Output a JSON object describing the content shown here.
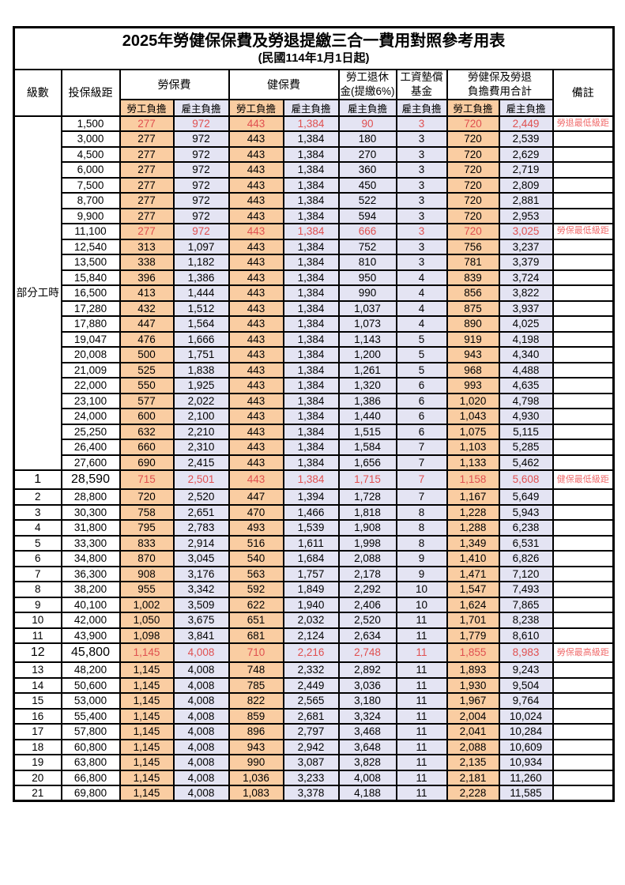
{
  "title": "2025年勞健保保費及勞退提繳三合一費用對照參考用表",
  "subtitle": "(民國114年1月1日起)",
  "colors": {
    "employee_bg": "#FACDA2",
    "employer_bg": "#E4E4F3",
    "red_value": "#E05050",
    "red_remark": "#F06A6A",
    "border": "#000000"
  },
  "header": {
    "level": "級數",
    "salary_bracket": "投保級距",
    "labor_insurance": "勞保費",
    "health_insurance": "健保費",
    "pension_line1": "勞工退休",
    "pension_line2": "金(提繳6%)",
    "wage_arrears_line1": "工資墊償",
    "wage_arrears_line2": "基金",
    "total_line1": "勞健保及勞退",
    "total_line2": "負擔費用合計",
    "remark": "備註",
    "employee_share": "勞工負擔",
    "employer_share": "雇主負擔"
  },
  "part_time_label": "部分工時",
  "rows": [
    {
      "level": "",
      "bracket": "1,500",
      "v": [
        "277",
        "972",
        "443",
        "1,384",
        "90",
        "3",
        "720",
        "2,449"
      ],
      "remark": "勞退最低級距",
      "red": true,
      "big": false
    },
    {
      "level": "",
      "bracket": "3,000",
      "v": [
        "277",
        "972",
        "443",
        "1,384",
        "180",
        "3",
        "720",
        "2,539"
      ],
      "remark": "",
      "red": false,
      "big": false
    },
    {
      "level": "",
      "bracket": "4,500",
      "v": [
        "277",
        "972",
        "443",
        "1,384",
        "270",
        "3",
        "720",
        "2,629"
      ],
      "remark": "",
      "red": false,
      "big": false
    },
    {
      "level": "",
      "bracket": "6,000",
      "v": [
        "277",
        "972",
        "443",
        "1,384",
        "360",
        "3",
        "720",
        "2,719"
      ],
      "remark": "",
      "red": false,
      "big": false
    },
    {
      "level": "",
      "bracket": "7,500",
      "v": [
        "277",
        "972",
        "443",
        "1,384",
        "450",
        "3",
        "720",
        "2,809"
      ],
      "remark": "",
      "red": false,
      "big": false
    },
    {
      "level": "",
      "bracket": "8,700",
      "v": [
        "277",
        "972",
        "443",
        "1,384",
        "522",
        "3",
        "720",
        "2,881"
      ],
      "remark": "",
      "red": false,
      "big": false
    },
    {
      "level": "",
      "bracket": "9,900",
      "v": [
        "277",
        "972",
        "443",
        "1,384",
        "594",
        "3",
        "720",
        "2,953"
      ],
      "remark": "",
      "red": false,
      "big": false
    },
    {
      "level": "",
      "bracket": "11,100",
      "v": [
        "277",
        "972",
        "443",
        "1,384",
        "666",
        "3",
        "720",
        "3,025"
      ],
      "remark": "勞保最低級距",
      "red": true,
      "big": false
    },
    {
      "level": "",
      "bracket": "12,540",
      "v": [
        "313",
        "1,097",
        "443",
        "1,384",
        "752",
        "3",
        "756",
        "3,237"
      ],
      "remark": "",
      "red": false,
      "big": false
    },
    {
      "level": "",
      "bracket": "13,500",
      "v": [
        "338",
        "1,182",
        "443",
        "1,384",
        "810",
        "3",
        "781",
        "3,379"
      ],
      "remark": "",
      "red": false,
      "big": false
    },
    {
      "level": "",
      "bracket": "15,840",
      "v": [
        "396",
        "1,386",
        "443",
        "1,384",
        "950",
        "4",
        "839",
        "3,724"
      ],
      "remark": "",
      "red": false,
      "big": false
    },
    {
      "level": "",
      "bracket": "16,500",
      "v": [
        "413",
        "1,444",
        "443",
        "1,384",
        "990",
        "4",
        "856",
        "3,822"
      ],
      "remark": "",
      "red": false,
      "big": false
    },
    {
      "level": "",
      "bracket": "17,280",
      "v": [
        "432",
        "1,512",
        "443",
        "1,384",
        "1,037",
        "4",
        "875",
        "3,937"
      ],
      "remark": "",
      "red": false,
      "big": false
    },
    {
      "level": "",
      "bracket": "17,880",
      "v": [
        "447",
        "1,564",
        "443",
        "1,384",
        "1,073",
        "4",
        "890",
        "4,025"
      ],
      "remark": "",
      "red": false,
      "big": false
    },
    {
      "level": "",
      "bracket": "19,047",
      "v": [
        "476",
        "1,666",
        "443",
        "1,384",
        "1,143",
        "5",
        "919",
        "4,198"
      ],
      "remark": "",
      "red": false,
      "big": false
    },
    {
      "level": "",
      "bracket": "20,008",
      "v": [
        "500",
        "1,751",
        "443",
        "1,384",
        "1,200",
        "5",
        "943",
        "4,340"
      ],
      "remark": "",
      "red": false,
      "big": false
    },
    {
      "level": "",
      "bracket": "21,009",
      "v": [
        "525",
        "1,838",
        "443",
        "1,384",
        "1,261",
        "5",
        "968",
        "4,488"
      ],
      "remark": "",
      "red": false,
      "big": false
    },
    {
      "level": "",
      "bracket": "22,000",
      "v": [
        "550",
        "1,925",
        "443",
        "1,384",
        "1,320",
        "6",
        "993",
        "4,635"
      ],
      "remark": "",
      "red": false,
      "big": false
    },
    {
      "level": "",
      "bracket": "23,100",
      "v": [
        "577",
        "2,022",
        "443",
        "1,384",
        "1,386",
        "6",
        "1,020",
        "4,798"
      ],
      "remark": "",
      "red": false,
      "big": false
    },
    {
      "level": "",
      "bracket": "24,000",
      "v": [
        "600",
        "2,100",
        "443",
        "1,384",
        "1,440",
        "6",
        "1,043",
        "4,930"
      ],
      "remark": "",
      "red": false,
      "big": false
    },
    {
      "level": "",
      "bracket": "25,250",
      "v": [
        "632",
        "2,210",
        "443",
        "1,384",
        "1,515",
        "6",
        "1,075",
        "5,115"
      ],
      "remark": "",
      "red": false,
      "big": false
    },
    {
      "level": "",
      "bracket": "26,400",
      "v": [
        "660",
        "2,310",
        "443",
        "1,384",
        "1,584",
        "7",
        "1,103",
        "5,285"
      ],
      "remark": "",
      "red": false,
      "big": false
    },
    {
      "level": "",
      "bracket": "27,600",
      "v": [
        "690",
        "2,415",
        "443",
        "1,384",
        "1,656",
        "7",
        "1,133",
        "5,462"
      ],
      "remark": "",
      "red": false,
      "big": false
    },
    {
      "level": "1",
      "bracket": "28,590",
      "v": [
        "715",
        "2,501",
        "443",
        "1,384",
        "1,715",
        "7",
        "1,158",
        "5,608"
      ],
      "remark": "健保最低級距",
      "red": true,
      "big": true
    },
    {
      "level": "2",
      "bracket": "28,800",
      "v": [
        "720",
        "2,520",
        "447",
        "1,394",
        "1,728",
        "7",
        "1,167",
        "5,649"
      ],
      "remark": "",
      "red": false,
      "big": false
    },
    {
      "level": "3",
      "bracket": "30,300",
      "v": [
        "758",
        "2,651",
        "470",
        "1,466",
        "1,818",
        "8",
        "1,228",
        "5,943"
      ],
      "remark": "",
      "red": false,
      "big": false
    },
    {
      "level": "4",
      "bracket": "31,800",
      "v": [
        "795",
        "2,783",
        "493",
        "1,539",
        "1,908",
        "8",
        "1,288",
        "6,238"
      ],
      "remark": "",
      "red": false,
      "big": false
    },
    {
      "level": "5",
      "bracket": "33,300",
      "v": [
        "833",
        "2,914",
        "516",
        "1,611",
        "1,998",
        "8",
        "1,349",
        "6,531"
      ],
      "remark": "",
      "red": false,
      "big": false
    },
    {
      "level": "6",
      "bracket": "34,800",
      "v": [
        "870",
        "3,045",
        "540",
        "1,684",
        "2,088",
        "9",
        "1,410",
        "6,826"
      ],
      "remark": "",
      "red": false,
      "big": false
    },
    {
      "level": "7",
      "bracket": "36,300",
      "v": [
        "908",
        "3,176",
        "563",
        "1,757",
        "2,178",
        "9",
        "1,471",
        "7,120"
      ],
      "remark": "",
      "red": false,
      "big": false
    },
    {
      "level": "8",
      "bracket": "38,200",
      "v": [
        "955",
        "3,342",
        "592",
        "1,849",
        "2,292",
        "10",
        "1,547",
        "7,493"
      ],
      "remark": "",
      "red": false,
      "big": false
    },
    {
      "level": "9",
      "bracket": "40,100",
      "v": [
        "1,002",
        "3,509",
        "622",
        "1,940",
        "2,406",
        "10",
        "1,624",
        "7,865"
      ],
      "remark": "",
      "red": false,
      "big": false
    },
    {
      "level": "10",
      "bracket": "42,000",
      "v": [
        "1,050",
        "3,675",
        "651",
        "2,032",
        "2,520",
        "11",
        "1,701",
        "8,238"
      ],
      "remark": "",
      "red": false,
      "big": false
    },
    {
      "level": "11",
      "bracket": "43,900",
      "v": [
        "1,098",
        "3,841",
        "681",
        "2,124",
        "2,634",
        "11",
        "1,779",
        "8,610"
      ],
      "remark": "",
      "red": false,
      "big": false
    },
    {
      "level": "12",
      "bracket": "45,800",
      "v": [
        "1,145",
        "4,008",
        "710",
        "2,216",
        "2,748",
        "11",
        "1,855",
        "8,983"
      ],
      "remark": "勞保最高級距",
      "red": true,
      "big": true
    },
    {
      "level": "13",
      "bracket": "48,200",
      "v": [
        "1,145",
        "4,008",
        "748",
        "2,332",
        "2,892",
        "11",
        "1,893",
        "9,243"
      ],
      "remark": "",
      "red": false,
      "big": false
    },
    {
      "level": "14",
      "bracket": "50,600",
      "v": [
        "1,145",
        "4,008",
        "785",
        "2,449",
        "3,036",
        "11",
        "1,930",
        "9,504"
      ],
      "remark": "",
      "red": false,
      "big": false
    },
    {
      "level": "15",
      "bracket": "53,000",
      "v": [
        "1,145",
        "4,008",
        "822",
        "2,565",
        "3,180",
        "11",
        "1,967",
        "9,764"
      ],
      "remark": "",
      "red": false,
      "big": false
    },
    {
      "level": "16",
      "bracket": "55,400",
      "v": [
        "1,145",
        "4,008",
        "859",
        "2,681",
        "3,324",
        "11",
        "2,004",
        "10,024"
      ],
      "remark": "",
      "red": false,
      "big": false
    },
    {
      "level": "17",
      "bracket": "57,800",
      "v": [
        "1,145",
        "4,008",
        "896",
        "2,797",
        "3,468",
        "11",
        "2,041",
        "10,284"
      ],
      "remark": "",
      "red": false,
      "big": false
    },
    {
      "level": "18",
      "bracket": "60,800",
      "v": [
        "1,145",
        "4,008",
        "943",
        "2,942",
        "3,648",
        "11",
        "2,088",
        "10,609"
      ],
      "remark": "",
      "red": false,
      "big": false
    },
    {
      "level": "19",
      "bracket": "63,800",
      "v": [
        "1,145",
        "4,008",
        "990",
        "3,087",
        "3,828",
        "11",
        "2,135",
        "10,934"
      ],
      "remark": "",
      "red": false,
      "big": false
    },
    {
      "level": "20",
      "bracket": "66,800",
      "v": [
        "1,145",
        "4,008",
        "1,036",
        "3,233",
        "4,008",
        "11",
        "2,181",
        "11,260"
      ],
      "remark": "",
      "red": false,
      "big": false
    },
    {
      "level": "21",
      "bracket": "69,800",
      "v": [
        "1,145",
        "4,008",
        "1,083",
        "3,378",
        "4,188",
        "11",
        "2,228",
        "11,585"
      ],
      "remark": "",
      "red": false,
      "big": false
    }
  ]
}
